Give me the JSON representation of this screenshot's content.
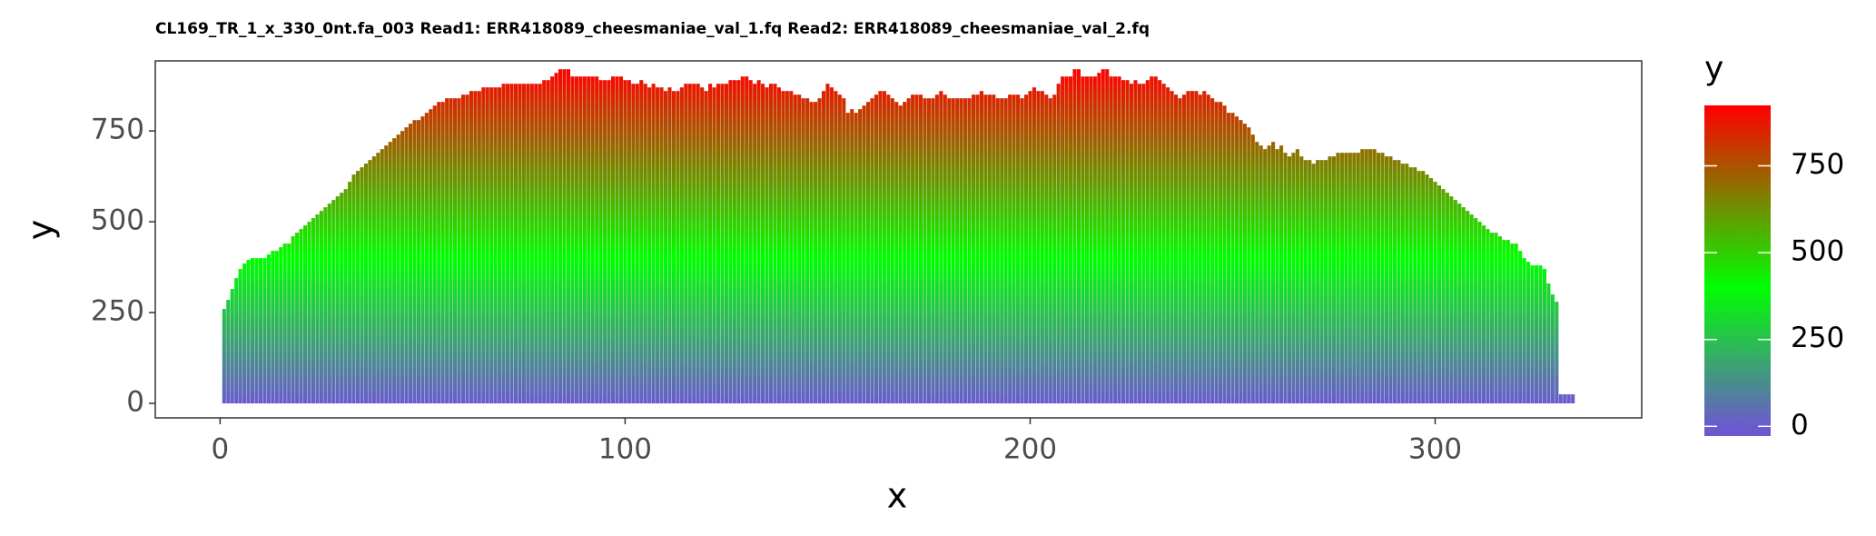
{
  "chart_data": {
    "type": "bar",
    "title": "CL169_TR_1_x_330_0nt.fa_003 Read1: ERR418089_cheesmaniae_val_1.fq Read2: ERR418089_cheesmaniae_val_2.fq",
    "x_label": "x",
    "y_label": "y",
    "x": [
      1,
      2,
      3,
      4,
      5,
      6,
      7,
      8,
      9,
      10,
      11,
      12,
      13,
      14,
      15,
      16,
      17,
      18,
      19,
      20,
      21,
      22,
      23,
      24,
      25,
      26,
      27,
      28,
      29,
      30,
      31,
      32,
      33,
      34,
      35,
      36,
      37,
      38,
      39,
      40,
      41,
      42,
      43,
      44,
      45,
      46,
      47,
      48,
      49,
      50,
      51,
      52,
      53,
      54,
      55,
      56,
      57,
      58,
      59,
      60,
      61,
      62,
      63,
      64,
      65,
      66,
      67,
      68,
      69,
      70,
      71,
      72,
      73,
      74,
      75,
      76,
      77,
      78,
      79,
      80,
      81,
      82,
      83,
      84,
      85,
      86,
      87,
      88,
      89,
      90,
      91,
      92,
      93,
      94,
      95,
      96,
      97,
      98,
      99,
      100,
      101,
      102,
      103,
      104,
      105,
      106,
      107,
      108,
      109,
      110,
      111,
      112,
      113,
      114,
      115,
      116,
      117,
      118,
      119,
      120,
      121,
      122,
      123,
      124,
      125,
      126,
      127,
      128,
      129,
      130,
      131,
      132,
      133,
      134,
      135,
      136,
      137,
      138,
      139,
      140,
      141,
      142,
      143,
      144,
      145,
      146,
      147,
      148,
      149,
      150,
      151,
      152,
      153,
      154,
      155,
      156,
      157,
      158,
      159,
      160,
      161,
      162,
      163,
      164,
      165,
      166,
      167,
      168,
      169,
      170,
      171,
      172,
      173,
      174,
      175,
      176,
      177,
      178,
      179,
      180,
      181,
      182,
      183,
      184,
      185,
      186,
      187,
      188,
      189,
      190,
      191,
      192,
      193,
      194,
      195,
      196,
      197,
      198,
      199,
      200,
      201,
      202,
      203,
      204,
      205,
      206,
      207,
      208,
      209,
      210,
      211,
      212,
      213,
      214,
      215,
      216,
      217,
      218,
      219,
      220,
      221,
      222,
      223,
      224,
      225,
      226,
      227,
      228,
      229,
      230,
      231,
      232,
      233,
      234,
      235,
      236,
      237,
      238,
      239,
      240,
      241,
      242,
      243,
      244,
      245,
      246,
      247,
      248,
      249,
      250,
      251,
      252,
      253,
      254,
      255,
      256,
      257,
      258,
      259,
      260,
      261,
      262,
      263,
      264,
      265,
      266,
      267,
      268,
      269,
      270,
      271,
      272,
      273,
      274,
      275,
      276,
      277,
      278,
      279,
      280,
      281,
      282,
      283,
      284,
      285,
      286,
      287,
      288,
      289,
      290,
      291,
      292,
      293,
      294,
      295,
      296,
      297,
      298,
      299,
      300,
      301,
      302,
      303,
      304,
      305,
      306,
      307,
      308,
      309,
      310,
      311,
      312,
      313,
      314,
      315,
      316,
      317,
      318,
      319,
      320,
      321,
      322,
      323,
      324,
      325,
      326,
      327,
      328,
      329,
      330,
      331,
      332,
      333,
      334
    ],
    "values": [
      260,
      285,
      315,
      345,
      370,
      385,
      395,
      400,
      400,
      400,
      400,
      410,
      420,
      420,
      430,
      440,
      440,
      460,
      470,
      480,
      490,
      500,
      510,
      520,
      530,
      540,
      550,
      560,
      570,
      580,
      590,
      610,
      630,
      640,
      650,
      660,
      670,
      680,
      690,
      700,
      710,
      720,
      730,
      740,
      750,
      760,
      770,
      780,
      780,
      790,
      800,
      810,
      820,
      830,
      830,
      840,
      840,
      840,
      840,
      850,
      850,
      860,
      860,
      860,
      870,
      870,
      870,
      870,
      870,
      880,
      880,
      880,
      880,
      880,
      880,
      880,
      880,
      880,
      880,
      890,
      890,
      900,
      910,
      920,
      920,
      920,
      900,
      900,
      900,
      900,
      900,
      900,
      900,
      890,
      890,
      890,
      900,
      900,
      900,
      890,
      890,
      880,
      880,
      890,
      880,
      870,
      880,
      870,
      870,
      860,
      870,
      860,
      860,
      870,
      880,
      880,
      880,
      880,
      870,
      860,
      880,
      870,
      880,
      880,
      880,
      890,
      890,
      890,
      900,
      900,
      890,
      880,
      890,
      880,
      870,
      880,
      880,
      870,
      860,
      860,
      860,
      850,
      850,
      840,
      840,
      830,
      830,
      840,
      860,
      880,
      870,
      860,
      850,
      840,
      800,
      810,
      800,
      810,
      820,
      830,
      840,
      850,
      860,
      860,
      850,
      840,
      830,
      820,
      830,
      840,
      850,
      850,
      850,
      840,
      840,
      840,
      850,
      860,
      850,
      840,
      840,
      840,
      840,
      840,
      840,
      850,
      850,
      860,
      850,
      850,
      850,
      840,
      840,
      840,
      850,
      850,
      850,
      840,
      850,
      860,
      870,
      860,
      860,
      850,
      840,
      850,
      880,
      900,
      900,
      900,
      920,
      920,
      900,
      900,
      900,
      900,
      910,
      920,
      920,
      900,
      900,
      900,
      890,
      890,
      880,
      890,
      880,
      880,
      890,
      900,
      900,
      890,
      880,
      870,
      860,
      850,
      840,
      850,
      860,
      860,
      860,
      850,
      860,
      850,
      840,
      830,
      830,
      820,
      800,
      800,
      790,
      780,
      770,
      760,
      740,
      720,
      710,
      700,
      710,
      720,
      700,
      710,
      690,
      680,
      690,
      700,
      680,
      670,
      670,
      660,
      670,
      670,
      670,
      680,
      680,
      690,
      690,
      690,
      690,
      690,
      690,
      700,
      700,
      700,
      700,
      690,
      690,
      680,
      680,
      670,
      670,
      660,
      660,
      650,
      650,
      640,
      640,
      630,
      620,
      610,
      600,
      590,
      580,
      570,
      560,
      550,
      540,
      530,
      520,
      510,
      500,
      490,
      480,
      470,
      470,
      460,
      450,
      450,
      440,
      440,
      420,
      400,
      390,
      380,
      380,
      380,
      370,
      330,
      300,
      280,
      25,
      25,
      25,
      25
    ],
    "xlim": [
      -16,
      351
    ],
    "xticks": [
      0,
      100,
      200,
      300
    ],
    "ylim": [
      -40,
      943
    ],
    "yticks": [
      0,
      250,
      500,
      750
    ],
    "grid": false,
    "gradient": [
      {
        "value": 0,
        "color": "#6a5acd"
      },
      {
        "value": 400,
        "color": "#00ff00"
      },
      {
        "value": 920,
        "color": "#ff0000"
      }
    ],
    "legend": {
      "title": "y",
      "lim": [
        -28,
        924
      ],
      "ticks": [
        0,
        250,
        500,
        750
      ]
    }
  }
}
